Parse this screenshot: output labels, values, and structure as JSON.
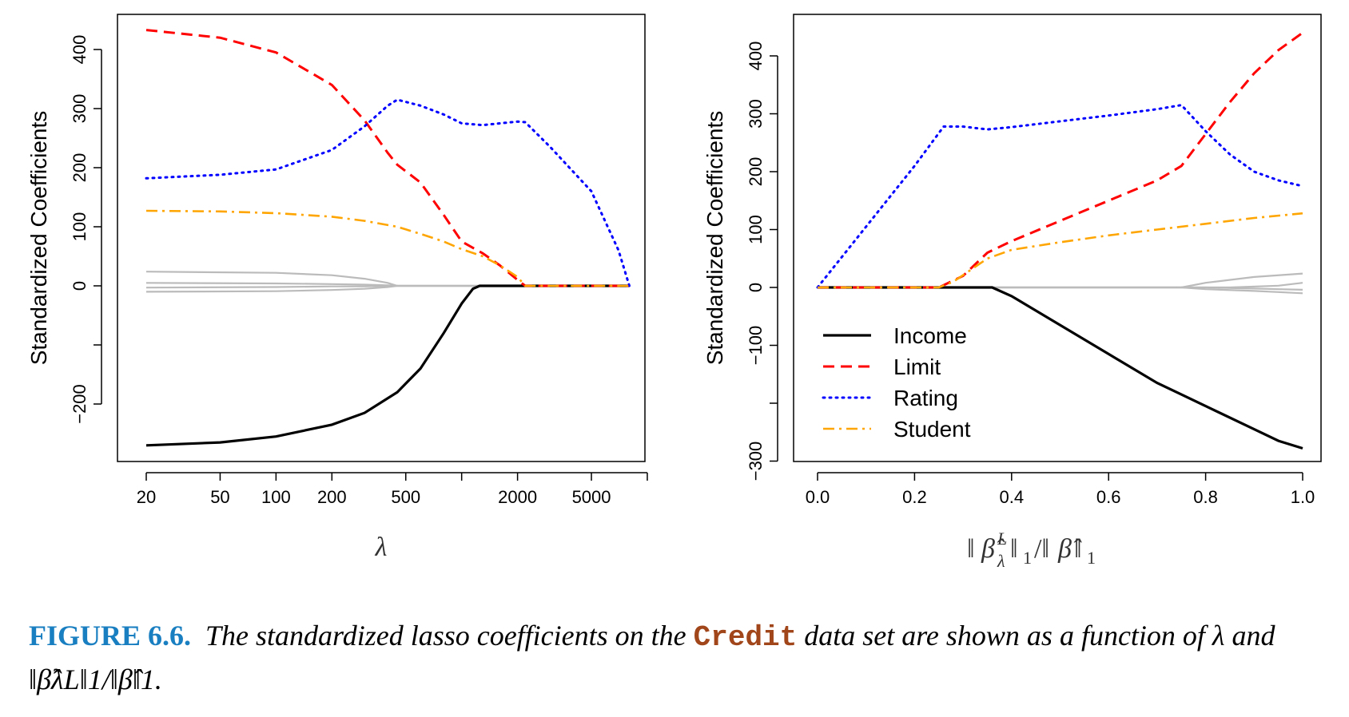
{
  "chart_data": [
    {
      "type": "line",
      "panel": "left",
      "title": "",
      "xlabel": "λ",
      "ylabel": "Standardized Coefficients",
      "xscale": "log",
      "xlim": [
        20,
        10000
      ],
      "ylim": [
        -280,
        430
      ],
      "x_ticks": [
        20,
        50,
        100,
        200,
        500,
        1000,
        2000,
        5000,
        10000
      ],
      "x_tick_labels": [
        "20",
        "50",
        "100",
        "200",
        "500",
        "",
        "2000",
        "5000",
        ""
      ],
      "y_ticks": [
        -200,
        -100,
        0,
        100,
        200,
        300,
        400
      ],
      "y_tick_labels": [
        "−200",
        "",
        "0",
        "100",
        "200",
        "300",
        "400"
      ],
      "grid": false,
      "series": [
        {
          "name": "Income",
          "style": "solid",
          "color": "#000000",
          "x": [
            20,
            50,
            100,
            200,
            300,
            450,
            600,
            800,
            1000,
            1150,
            1250,
            2200,
            8000
          ],
          "y": [
            -270,
            -265,
            -255,
            -235,
            -215,
            -180,
            -140,
            -80,
            -30,
            -5,
            0,
            0,
            0
          ]
        },
        {
          "name": "Limit",
          "style": "dashed",
          "color": "#ff0000",
          "x": [
            20,
            50,
            100,
            200,
            300,
            400,
            450,
            600,
            800,
            1000,
            1300,
            1600,
            2000,
            2200,
            8000
          ],
          "y": [
            433,
            420,
            395,
            340,
            280,
            225,
            205,
            175,
            120,
            75,
            55,
            35,
            10,
            0,
            0
          ]
        },
        {
          "name": "Rating",
          "style": "dotted",
          "color": "#0000ff",
          "x": [
            20,
            50,
            100,
            200,
            300,
            400,
            450,
            600,
            800,
            1000,
            1300,
            1600,
            2000,
            2200,
            3000,
            5000,
            7000,
            8000
          ],
          "y": [
            182,
            188,
            197,
            230,
            270,
            305,
            315,
            305,
            290,
            275,
            272,
            275,
            278,
            277,
            235,
            160,
            60,
            0
          ]
        },
        {
          "name": "Student",
          "style": "dashdot",
          "color": "#ffa500",
          "x": [
            20,
            50,
            100,
            200,
            300,
            450,
            600,
            800,
            1000,
            1300,
            1600,
            2000,
            2200,
            8000
          ],
          "y": [
            127,
            126,
            123,
            117,
            110,
            100,
            88,
            75,
            62,
            50,
            35,
            15,
            0,
            0
          ]
        },
        {
          "name": "Other variables",
          "style": "solid",
          "color": "#bbbbbb",
          "lines": [
            {
              "x": [
                20,
                100,
                200,
                300,
                400,
                450,
                8000
              ],
              "y": [
                24,
                22,
                18,
                12,
                5,
                0,
                0
              ]
            },
            {
              "x": [
                20,
                100,
                200,
                300,
                400,
                450,
                8000
              ],
              "y": [
                5,
                4,
                3,
                2,
                1,
                0,
                0
              ]
            },
            {
              "x": [
                20,
                100,
                200,
                300,
                400,
                450,
                8000
              ],
              "y": [
                -10,
                -9,
                -7,
                -5,
                -2,
                0,
                0
              ]
            },
            {
              "x": [
                20,
                100,
                200,
                300,
                400,
                450,
                8000
              ],
              "y": [
                -3,
                -2,
                -1,
                -1,
                0,
                0,
                0
              ]
            }
          ]
        }
      ]
    },
    {
      "type": "line",
      "panel": "right",
      "title": "",
      "xlabel": "‖β̂λL‖1/‖β̂‖1",
      "ylabel": "Standardized Coefficients",
      "xlim": [
        -0.04,
        1.04
      ],
      "ylim": [
        -300,
        440
      ],
      "x_ticks": [
        0.0,
        0.2,
        0.4,
        0.6,
        0.8,
        1.0
      ],
      "x_tick_labels": [
        "0.0",
        "0.2",
        "0.4",
        "0.6",
        "0.8",
        "1.0"
      ],
      "y_ticks": [
        -300,
        -200,
        -100,
        0,
        100,
        200,
        300,
        400
      ],
      "y_tick_labels": [
        "−300",
        "",
        "−100",
        "0",
        "100",
        "200",
        "300",
        "400"
      ],
      "grid": false,
      "legend": {
        "position": "bottom-left",
        "entries": [
          "Income",
          "Limit",
          "Rating",
          "Student"
        ]
      },
      "series": [
        {
          "name": "Income",
          "style": "solid",
          "color": "#000000",
          "x": [
            0,
            0.36,
            0.4,
            0.5,
            0.6,
            0.7,
            0.75,
            0.8,
            0.9,
            0.95,
            1.0
          ],
          "y": [
            0,
            0,
            -15,
            -65,
            -115,
            -165,
            -185,
            -205,
            -245,
            -265,
            -278
          ]
        },
        {
          "name": "Limit",
          "style": "dashed",
          "color": "#ff0000",
          "x": [
            0,
            0.25,
            0.3,
            0.35,
            0.4,
            0.5,
            0.6,
            0.7,
            0.75,
            0.8,
            0.85,
            0.9,
            0.95,
            1.0
          ],
          "y": [
            0,
            0,
            20,
            60,
            80,
            115,
            150,
            185,
            210,
            265,
            320,
            370,
            410,
            440
          ]
        },
        {
          "name": "Rating",
          "style": "dotted",
          "color": "#0000ff",
          "x": [
            0,
            0.1,
            0.2,
            0.26,
            0.3,
            0.35,
            0.4,
            0.5,
            0.6,
            0.7,
            0.75,
            0.8,
            0.85,
            0.9,
            0.95,
            1.0
          ],
          "y": [
            0,
            105,
            210,
            278,
            278,
            273,
            277,
            287,
            297,
            308,
            315,
            270,
            230,
            200,
            185,
            175
          ]
        },
        {
          "name": "Student",
          "style": "dashdot",
          "color": "#ffa500",
          "x": [
            0,
            0.25,
            0.28,
            0.35,
            0.4,
            0.5,
            0.6,
            0.7,
            0.8,
            0.9,
            1.0
          ],
          "y": [
            0,
            0,
            10,
            50,
            65,
            78,
            90,
            100,
            110,
            120,
            128
          ]
        },
        {
          "name": "Other variables",
          "style": "solid",
          "color": "#bbbbbb",
          "lines": [
            {
              "x": [
                0,
                0.75,
                0.8,
                0.9,
                1.0
              ],
              "y": [
                0,
                0,
                8,
                18,
                24
              ]
            },
            {
              "x": [
                0,
                0.75,
                0.8,
                0.9,
                0.95,
                1.0
              ],
              "y": [
                0,
                0,
                -3,
                -6,
                -8,
                -10
              ]
            },
            {
              "x": [
                0,
                0.8,
                0.9,
                0.95,
                1.0
              ],
              "y": [
                0,
                0,
                -2,
                -3,
                -4
              ]
            },
            {
              "x": [
                0,
                0.85,
                0.95,
                1.0
              ],
              "y": [
                0,
                0,
                3,
                8
              ]
            }
          ]
        }
      ]
    }
  ],
  "caption": {
    "figure_label": "FIGURE 6.6.",
    "text_before": "The standardized lasso coefficients on the",
    "dataset": "Credit",
    "text_after": "data set are shown as a function of λ and ‖β̂λL‖1/‖β̂‖1."
  }
}
